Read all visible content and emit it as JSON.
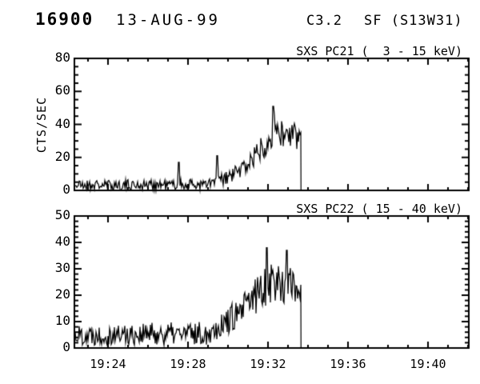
{
  "header": {
    "event_number": "16900",
    "date": "13-AUG-99",
    "goes_class": "C3.2",
    "flare_type": "SF (S13W31)"
  },
  "chart_data": [
    {
      "type": "line",
      "title": "SXS PC21 (  3 - 15 keV)",
      "instrument": "SXS",
      "channel": "PC21",
      "energy_range": "3 - 15 keV",
      "ylabel": "CTS/SEC",
      "xlabel": "",
      "ylim": [
        0,
        80
      ],
      "yticks": [
        0,
        20,
        40,
        60,
        80
      ],
      "yminor_step": 5,
      "x_start_min": 22.32,
      "x_end_min": 42.04,
      "cutoff_min": 33.65,
      "xticks_min": [
        24,
        28,
        32,
        36,
        40
      ],
      "xtick_labels": [],
      "xminor_step_min": 1,
      "grid": false,
      "line_color": "#000000",
      "background": "#ffffff",
      "envelope_t_mean_amp": [
        [
          22.32,
          3.2,
          3.2
        ],
        [
          28.9,
          3.5,
          3.5
        ],
        [
          29.9,
          7,
          4.5
        ],
        [
          30.7,
          13,
          6
        ],
        [
          31.3,
          20,
          7
        ],
        [
          31.9,
          30,
          9
        ],
        [
          32.3,
          36,
          10
        ],
        [
          32.7,
          34,
          9
        ],
        [
          33.2,
          33,
          8
        ],
        [
          33.65,
          32,
          8
        ]
      ],
      "spikes_t_value": [
        [
          27.55,
          17
        ],
        [
          29.45,
          21
        ],
        [
          32.25,
          51
        ]
      ],
      "noise_seed": 21
    },
    {
      "type": "line",
      "title": "SXS PC22 ( 15 - 40 keV)",
      "instrument": "SXS",
      "channel": "PC22",
      "energy_range": "15 - 40 keV",
      "ylabel": "",
      "xlabel": "",
      "ylim": [
        0,
        50
      ],
      "yticks": [
        0,
        10,
        20,
        30,
        40,
        50
      ],
      "yminor_step": 2,
      "x_start_min": 22.32,
      "x_end_min": 42.04,
      "cutoff_min": 33.65,
      "xticks_min": [
        24,
        28,
        32,
        36,
        40
      ],
      "xtick_labels": [
        "19:24",
        "19:28",
        "19:32",
        "19:36",
        "19:40"
      ],
      "xminor_step_min": 1,
      "grid": false,
      "line_color": "#000000",
      "background": "#ffffff",
      "envelope_t_mean_amp": [
        [
          22.32,
          5,
          4
        ],
        [
          28.9,
          5.5,
          4.5
        ],
        [
          29.9,
          10,
          5
        ],
        [
          30.7,
          14,
          6
        ],
        [
          31.4,
          20,
          8
        ],
        [
          32.0,
          26,
          9
        ],
        [
          32.5,
          25,
          8
        ],
        [
          33.65,
          22.5,
          7
        ]
      ],
      "spikes_t_value": [
        [
          30.55,
          13
        ],
        [
          31.95,
          38
        ],
        [
          32.95,
          37
        ]
      ],
      "noise_seed": 22
    }
  ]
}
